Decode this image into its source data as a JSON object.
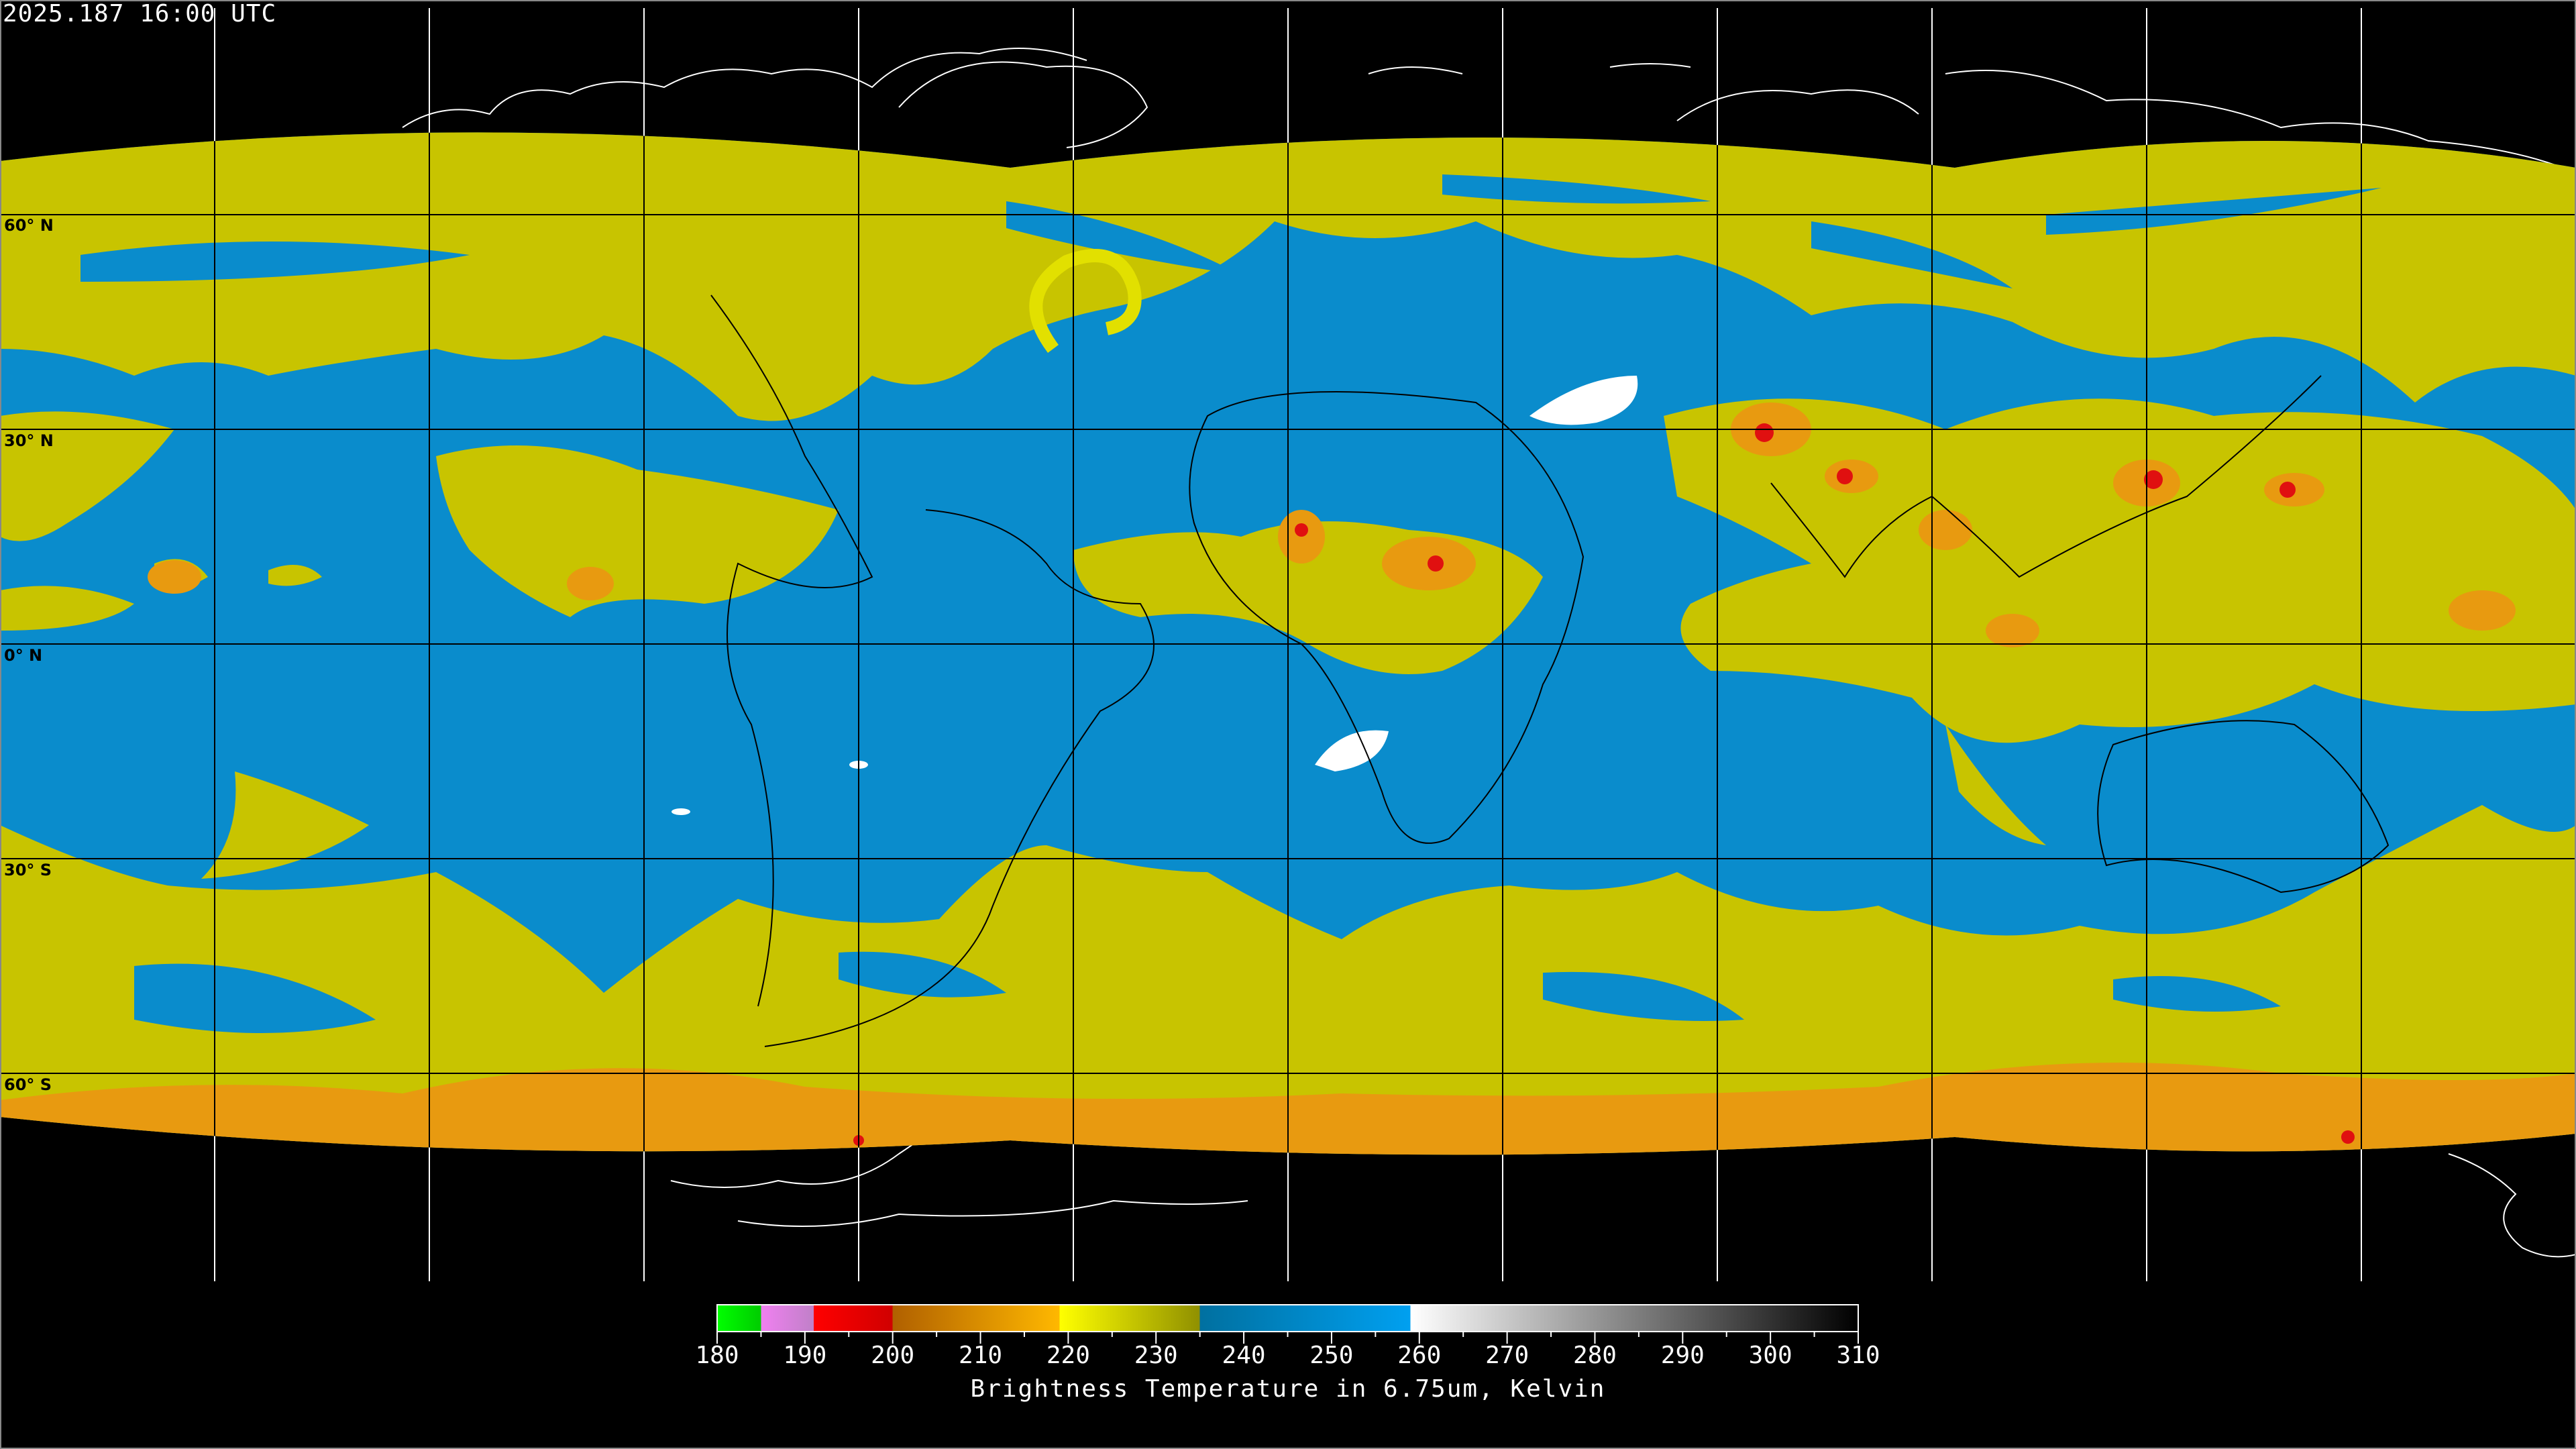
{
  "header": {
    "timestamp": "2025.187 16:00 UTC"
  },
  "map": {
    "lat_labels": [
      "60° N",
      "30° N",
      "0° N",
      "30° S",
      "60° S"
    ],
    "grid_spacing_deg": 30,
    "colors": {
      "clear_air": "#0a8ccc",
      "moist": "#c8c400",
      "cold": "#e89a10",
      "very_cold": "#e01010",
      "warm": "#ffffff",
      "background": "#000000"
    }
  },
  "colorbar": {
    "title": "Brightness Temperature in 6.75um, Kelvin",
    "min": 180,
    "max": 310,
    "tick_labels": [
      "180",
      "190",
      "200",
      "210",
      "220",
      "230",
      "240",
      "250",
      "260",
      "270",
      "280",
      "290",
      "300",
      "310"
    ],
    "segments": [
      {
        "from": 180,
        "to": 185,
        "start": "#00ff00",
        "end": "#00cc00"
      },
      {
        "from": 185,
        "to": 191,
        "start": "#f080f0",
        "end": "#c080c8"
      },
      {
        "from": 191,
        "to": 200,
        "start": "#ff0000",
        "end": "#d00000"
      },
      {
        "from": 200,
        "to": 219,
        "start": "#b06000",
        "end": "#ffb800"
      },
      {
        "from": 219,
        "to": 235,
        "start": "#ffff00",
        "end": "#909000"
      },
      {
        "from": 235,
        "to": 259,
        "start": "#0070a0",
        "end": "#00a0f0"
      },
      {
        "from": 259,
        "to": 310,
        "start": "#ffffff",
        "end": "#000000"
      }
    ]
  }
}
